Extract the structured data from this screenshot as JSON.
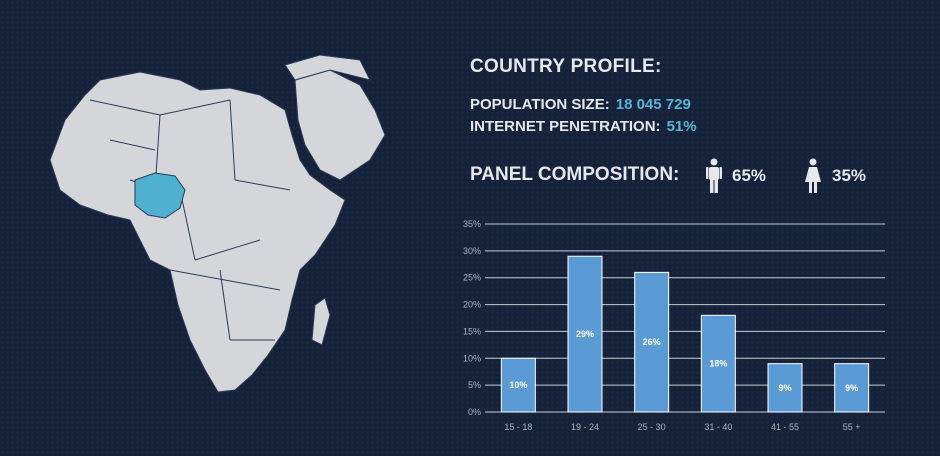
{
  "profile": {
    "title": "COUNTRY PROFILE:",
    "population_label": "POPULATION SIZE:",
    "population_value": "18 045 729",
    "internet_label": "INTERNET PENETRATION:",
    "internet_value": "51%"
  },
  "panel": {
    "title": "PANEL COMPOSITION:",
    "male_pct": "65%",
    "female_pct": "35%",
    "male_icon": "male-icon",
    "female_icon": "female-icon"
  },
  "colors": {
    "background": "#15223a",
    "accent": "#5ab6d6",
    "bar": "#5b9bd5",
    "map_land": "#d4d6da",
    "map_highlight": "#4fb0cf"
  },
  "chart_data": {
    "type": "bar",
    "categories": [
      "15 - 18",
      "19 - 24",
      "25 - 30",
      "31 - 40",
      "41 - 55",
      "55 +"
    ],
    "values": [
      10,
      29,
      26,
      18,
      9,
      9
    ],
    "data_labels": [
      "10%",
      "29%",
      "26%",
      "18%",
      "9%",
      "9%"
    ],
    "yticks": [
      "0%",
      "5%",
      "10%",
      "15%",
      "20%",
      "25%",
      "30%",
      "35%"
    ],
    "ylim": [
      0,
      35
    ],
    "grid": true,
    "title": "",
    "xlabel": "",
    "ylabel": ""
  }
}
